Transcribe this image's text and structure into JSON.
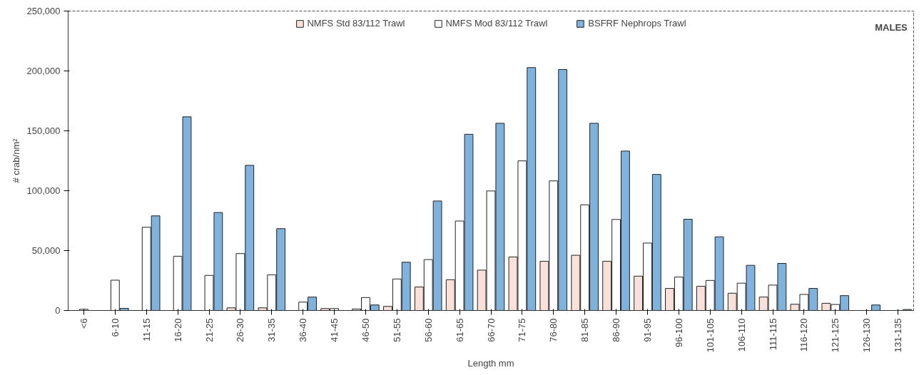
{
  "chart_data": {
    "type": "bar",
    "xlabel": "Length mm",
    "ylabel": "# crab/nm²",
    "categories": [
      "<6",
      "6-10",
      "11-15",
      "16-20",
      "21-25",
      "26-30",
      "31-35",
      "36-40",
      "41-45",
      "46-50",
      "51-55",
      "56-60",
      "61-65",
      "66-70",
      "71-75",
      "76-80",
      "81-85",
      "86-90",
      "91-95",
      "96-100",
      "101-105",
      "106-110",
      "111-115",
      "116-120",
      "121-125",
      "126-130",
      "131-135"
    ],
    "series": [
      {
        "name": "NMFS Std 83/112 Trawl",
        "color": "#f9e1da",
        "values": [
          0,
          0,
          0,
          0,
          0,
          2200,
          2200,
          null,
          1600,
          1200,
          3400,
          19600,
          25700,
          33700,
          44700,
          41100,
          46100,
          41100,
          28700,
          18400,
          20200,
          14400,
          11200,
          5200,
          6000,
          0,
          0
        ]
      },
      {
        "name": "NMFS Mod 83/112 Trawl",
        "color": "#ffffff",
        "values": [
          1000,
          25300,
          69500,
          45300,
          29300,
          47500,
          29700,
          7000,
          1600,
          10800,
          26300,
          42500,
          74700,
          99800,
          124900,
          108200,
          88200,
          76000,
          56300,
          27900,
          25100,
          22800,
          21200,
          13400,
          5000,
          null,
          null
        ]
      },
      {
        "name": "BSFRF Nephrops Trawl",
        "color": "#7fb2dc",
        "values": [
          0,
          1800,
          79000,
          161700,
          81800,
          121200,
          68300,
          11200,
          0,
          4600,
          40300,
          91400,
          147100,
          156300,
          202800,
          201200,
          156300,
          133100,
          113600,
          76200,
          61500,
          37700,
          39300,
          18400,
          12400,
          4600,
          800
        ]
      }
    ],
    "ylim": [
      0,
      250000
    ],
    "yticks": [
      {
        "value": 0,
        "label": "0"
      },
      {
        "value": 50000,
        "label": "50,000"
      },
      {
        "value": 100000,
        "label": "100,000"
      },
      {
        "value": 150000,
        "label": "150,000"
      },
      {
        "value": 200000,
        "label": "200,000"
      },
      {
        "value": 250000,
        "label": "250,000"
      }
    ],
    "grid": false,
    "legend": "top",
    "annotations": [
      "MALES"
    ]
  }
}
